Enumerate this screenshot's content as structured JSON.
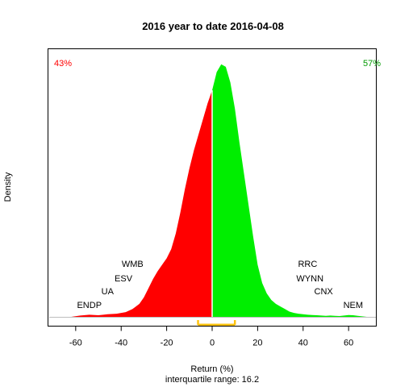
{
  "chart_data": {
    "type": "area",
    "title": "2016  year to date 2016-04-08",
    "xlabel": "Return (%)",
    "ylabel": "Density",
    "subtitle": "interquartile range: 16.2",
    "xlim": [
      -72,
      72
    ],
    "ylim": [
      0,
      1.0
    ],
    "xticks": [
      -60,
      -40,
      -20,
      0,
      20,
      40,
      60
    ],
    "grid": false,
    "split_at": 0,
    "left_percent": "43%",
    "right_percent": "57%",
    "colors": {
      "negative": "#ff0000",
      "positive": "#00ee00",
      "left_percent_text": "#ff0000",
      "right_percent_text": "#009900",
      "iqr_bar": "#ffc20e",
      "baseline": "#bdbdbd",
      "divider": "#ffffff"
    },
    "iqr": {
      "q1": -6.2,
      "q3": 10.0,
      "value": 16.2
    },
    "density": {
      "x": [
        -62,
        -58,
        -54,
        -50,
        -46,
        -42,
        -38,
        -35,
        -32,
        -30,
        -28,
        -26,
        -24,
        -22,
        -20,
        -18,
        -16,
        -14,
        -12,
        -10,
        -8,
        -6,
        -4,
        -2,
        0,
        2,
        4,
        6,
        8,
        10,
        12,
        14,
        16,
        18,
        20,
        22,
        24,
        26,
        28,
        30,
        32,
        34,
        36,
        38,
        40,
        42,
        44,
        46,
        48,
        50,
        52,
        54,
        56,
        58,
        60,
        62,
        64,
        66,
        68
      ],
      "y": [
        0.0,
        0.005,
        0.008,
        0.006,
        0.01,
        0.012,
        0.018,
        0.03,
        0.05,
        0.075,
        0.11,
        0.145,
        0.175,
        0.2,
        0.225,
        0.26,
        0.32,
        0.4,
        0.49,
        0.57,
        0.64,
        0.7,
        0.76,
        0.82,
        0.87,
        0.94,
        0.97,
        0.96,
        0.9,
        0.8,
        0.67,
        0.55,
        0.43,
        0.31,
        0.2,
        0.13,
        0.09,
        0.065,
        0.05,
        0.04,
        0.03,
        0.02,
        0.015,
        0.012,
        0.01,
        0.008,
        0.007,
        0.006,
        0.005,
        0.004,
        0.005,
        0.004,
        0.003,
        0.005,
        0.007,
        0.006,
        0.004,
        0.002,
        0.0
      ]
    },
    "annotations": [
      {
        "label": "WMB",
        "x": -35
      },
      {
        "label": "ESV",
        "x": -39
      },
      {
        "label": "UA",
        "x": -46
      },
      {
        "label": "ENDP",
        "x": -54
      },
      {
        "label": "RRC",
        "x": 42
      },
      {
        "label": "WYNN",
        "x": 43
      },
      {
        "label": "CNX",
        "x": 49
      },
      {
        "label": "NEM",
        "x": 62
      }
    ]
  }
}
